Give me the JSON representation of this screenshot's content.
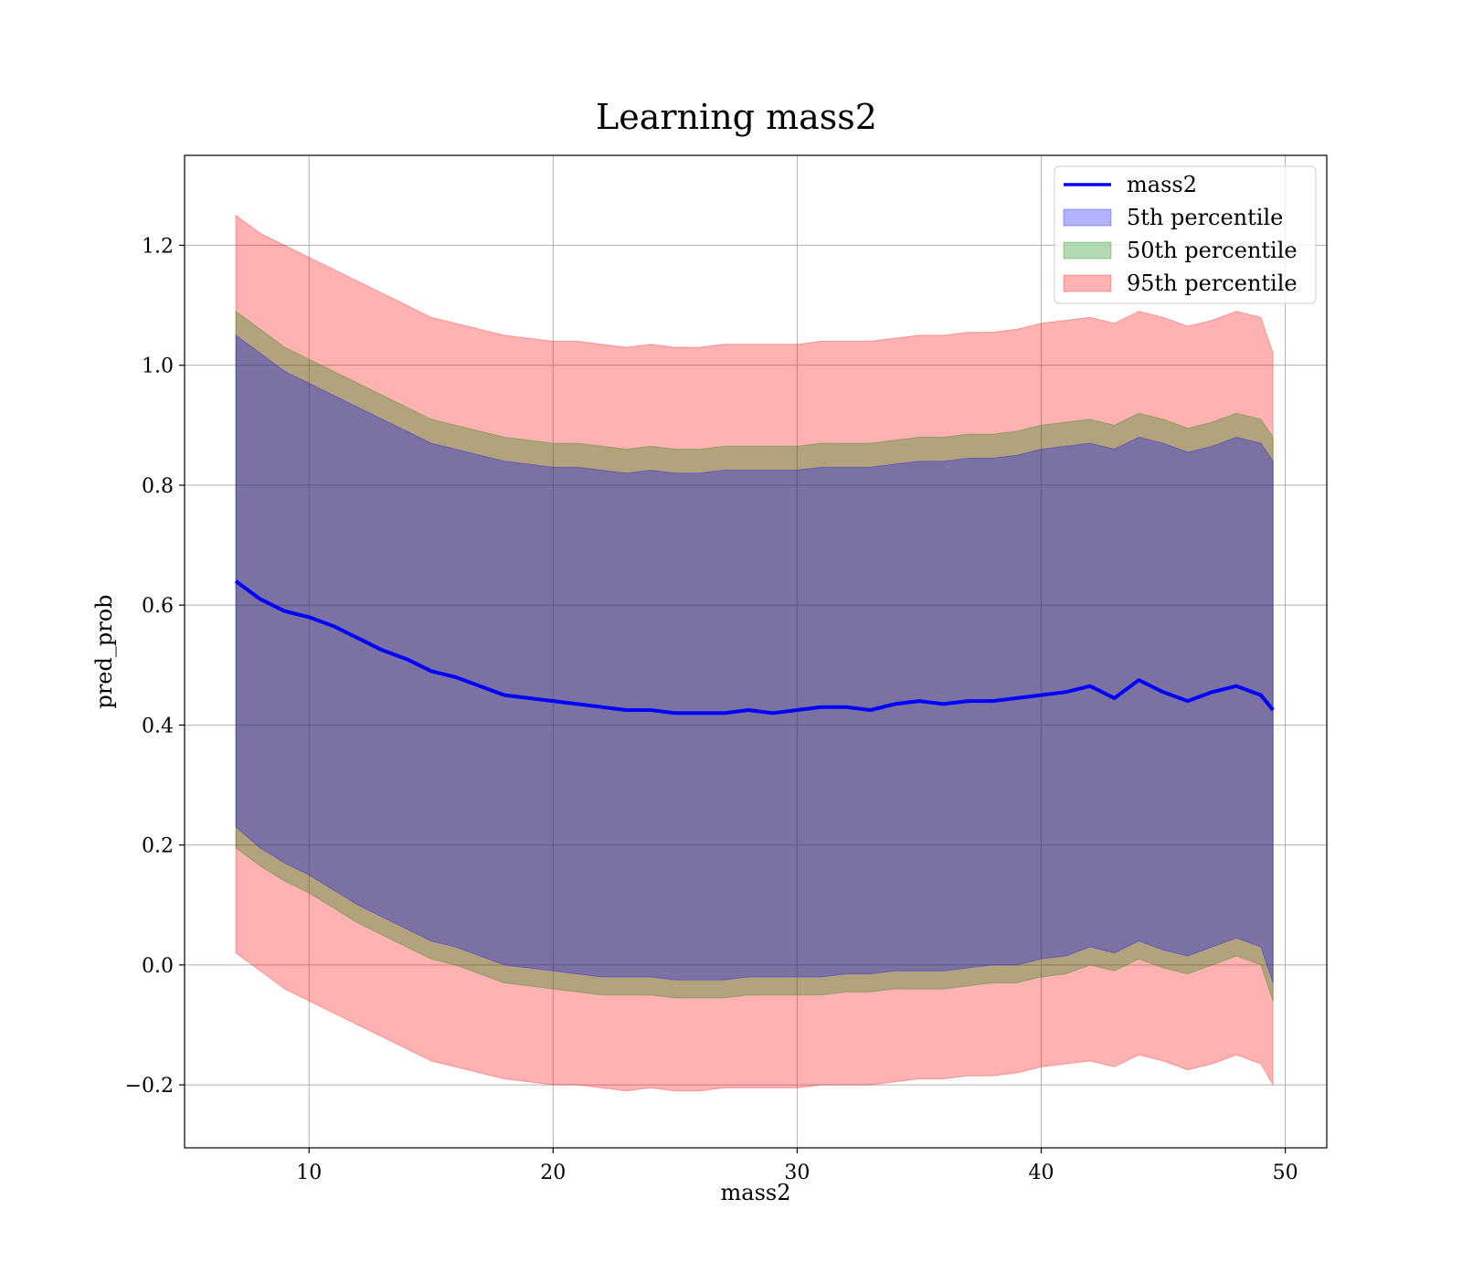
{
  "chart_data": {
    "type": "line",
    "title": "Learning mass2",
    "xlabel": "mass2",
    "ylabel": "pred_prob",
    "xlim": [
      4.9,
      51.7
    ],
    "ylim": [
      -0.305,
      1.35
    ],
    "xticks": [
      10,
      20,
      30,
      40,
      50
    ],
    "xtick_labels": [
      "10",
      "20",
      "30",
      "40",
      "50"
    ],
    "yticks": [
      -0.2,
      0.0,
      0.2,
      0.4,
      0.6,
      0.8,
      1.0,
      1.2
    ],
    "ytick_labels": [
      "−0.2",
      "0.0",
      "0.2",
      "0.4",
      "0.6",
      "0.8",
      "1.0",
      "1.2"
    ],
    "grid": true,
    "legend_position": "top-right",
    "x": [
      7,
      8,
      9,
      10,
      11,
      12,
      13,
      14,
      15,
      16,
      17,
      18,
      19,
      20,
      21,
      22,
      23,
      24,
      25,
      26,
      27,
      28,
      29,
      30,
      31,
      32,
      33,
      34,
      35,
      36,
      37,
      38,
      39,
      40,
      41,
      42,
      43,
      44,
      45,
      46,
      47,
      48,
      49,
      49.5
    ],
    "series": [
      {
        "name": "mass2",
        "kind": "line",
        "color": "#0000ff",
        "values": [
          0.64,
          0.61,
          0.59,
          0.58,
          0.565,
          0.545,
          0.525,
          0.51,
          0.49,
          0.48,
          0.465,
          0.45,
          0.445,
          0.44,
          0.435,
          0.43,
          0.425,
          0.425,
          0.42,
          0.42,
          0.42,
          0.425,
          0.42,
          0.425,
          0.43,
          0.43,
          0.425,
          0.435,
          0.44,
          0.435,
          0.44,
          0.44,
          0.445,
          0.45,
          0.455,
          0.465,
          0.445,
          0.475,
          0.455,
          0.44,
          0.455,
          0.465,
          0.45,
          0.425
        ]
      },
      {
        "name": "5th percentile",
        "kind": "band",
        "color": "#0000ff",
        "lower": [
          0.23,
          0.195,
          0.17,
          0.15,
          0.125,
          0.1,
          0.08,
          0.06,
          0.04,
          0.03,
          0.015,
          0.0,
          -0.005,
          -0.01,
          -0.015,
          -0.02,
          -0.02,
          -0.02,
          -0.025,
          -0.025,
          -0.025,
          -0.02,
          -0.02,
          -0.02,
          -0.02,
          -0.015,
          -0.015,
          -0.01,
          -0.01,
          -0.01,
          -0.005,
          0.0,
          0.0,
          0.01,
          0.015,
          0.03,
          0.02,
          0.04,
          0.025,
          0.015,
          0.03,
          0.045,
          0.03,
          -0.03
        ],
        "upper": [
          1.05,
          1.02,
          0.99,
          0.97,
          0.95,
          0.93,
          0.91,
          0.89,
          0.87,
          0.86,
          0.85,
          0.84,
          0.835,
          0.83,
          0.83,
          0.825,
          0.82,
          0.825,
          0.82,
          0.82,
          0.825,
          0.825,
          0.825,
          0.825,
          0.83,
          0.83,
          0.83,
          0.835,
          0.84,
          0.84,
          0.845,
          0.845,
          0.85,
          0.86,
          0.865,
          0.87,
          0.86,
          0.88,
          0.87,
          0.855,
          0.865,
          0.88,
          0.87,
          0.84
        ]
      },
      {
        "name": "50th percentile",
        "kind": "band",
        "color": "#008000",
        "lower": [
          0.195,
          0.165,
          0.14,
          0.12,
          0.095,
          0.07,
          0.05,
          0.03,
          0.01,
          0.0,
          -0.015,
          -0.03,
          -0.035,
          -0.04,
          -0.045,
          -0.05,
          -0.05,
          -0.05,
          -0.055,
          -0.055,
          -0.055,
          -0.05,
          -0.05,
          -0.05,
          -0.05,
          -0.045,
          -0.045,
          -0.04,
          -0.04,
          -0.04,
          -0.035,
          -0.03,
          -0.03,
          -0.02,
          -0.015,
          0.0,
          -0.01,
          0.01,
          -0.005,
          -0.015,
          0.0,
          0.015,
          0.0,
          -0.06
        ],
        "upper": [
          1.09,
          1.06,
          1.03,
          1.01,
          0.99,
          0.97,
          0.95,
          0.93,
          0.91,
          0.9,
          0.89,
          0.88,
          0.875,
          0.87,
          0.87,
          0.865,
          0.86,
          0.865,
          0.86,
          0.86,
          0.865,
          0.865,
          0.865,
          0.865,
          0.87,
          0.87,
          0.87,
          0.875,
          0.88,
          0.88,
          0.885,
          0.885,
          0.89,
          0.9,
          0.905,
          0.91,
          0.9,
          0.92,
          0.91,
          0.895,
          0.905,
          0.92,
          0.91,
          0.88
        ]
      },
      {
        "name": "95th percentile",
        "kind": "band",
        "color": "#ff0000",
        "lower": [
          0.02,
          -0.01,
          -0.04,
          -0.06,
          -0.08,
          -0.1,
          -0.12,
          -0.14,
          -0.16,
          -0.17,
          -0.18,
          -0.19,
          -0.195,
          -0.2,
          -0.2,
          -0.205,
          -0.21,
          -0.205,
          -0.21,
          -0.21,
          -0.205,
          -0.205,
          -0.205,
          -0.205,
          -0.2,
          -0.2,
          -0.2,
          -0.195,
          -0.19,
          -0.19,
          -0.185,
          -0.185,
          -0.18,
          -0.17,
          -0.165,
          -0.16,
          -0.17,
          -0.15,
          -0.16,
          -0.175,
          -0.165,
          -0.15,
          -0.165,
          -0.2
        ],
        "upper": [
          1.25,
          1.22,
          1.2,
          1.18,
          1.16,
          1.14,
          1.12,
          1.1,
          1.08,
          1.07,
          1.06,
          1.05,
          1.045,
          1.04,
          1.04,
          1.035,
          1.03,
          1.035,
          1.03,
          1.03,
          1.035,
          1.035,
          1.035,
          1.035,
          1.04,
          1.04,
          1.04,
          1.045,
          1.05,
          1.05,
          1.055,
          1.055,
          1.06,
          1.07,
          1.075,
          1.08,
          1.07,
          1.09,
          1.08,
          1.065,
          1.075,
          1.09,
          1.08,
          1.02
        ]
      }
    ],
    "legend": [
      "mass2",
      "5th percentile",
      "50th percentile",
      "95th percentile"
    ]
  }
}
